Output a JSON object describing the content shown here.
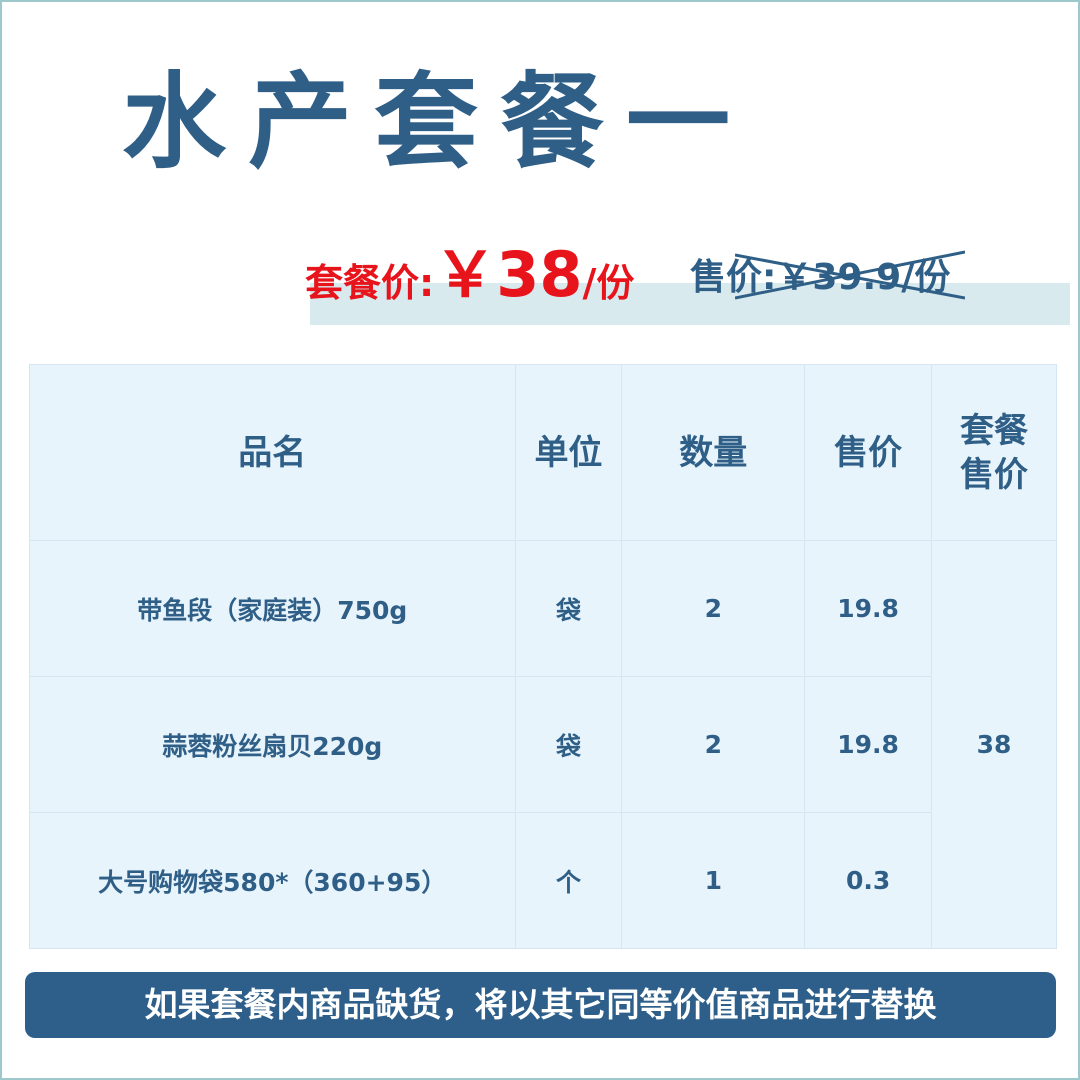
{
  "title": "水产套餐一",
  "package_price": {
    "label": "套餐价:",
    "value": "￥38",
    "unit": "/份"
  },
  "original_price": {
    "text": "售价:￥39.9/份"
  },
  "table": {
    "headers": [
      "品名",
      "单位",
      "数量",
      "售价",
      "套餐售价"
    ],
    "rows": [
      {
        "name": "带鱼段（家庭装）750g",
        "unit": "袋",
        "qty": "2",
        "price": "19.8"
      },
      {
        "name": "蒜蓉粉丝扇贝220g",
        "unit": "袋",
        "qty": "2",
        "price": "19.8"
      },
      {
        "name": "大号购物袋580*（360+95）",
        "unit": "个",
        "qty": "1",
        "price": "0.3"
      }
    ],
    "package_total": "38"
  },
  "notice": "如果套餐内商品缺货，将以其它同等价值商品进行替换",
  "colors": {
    "primary": "#2f5f87",
    "accent": "#e8141c",
    "table_bg": "#e8f4fc"
  }
}
